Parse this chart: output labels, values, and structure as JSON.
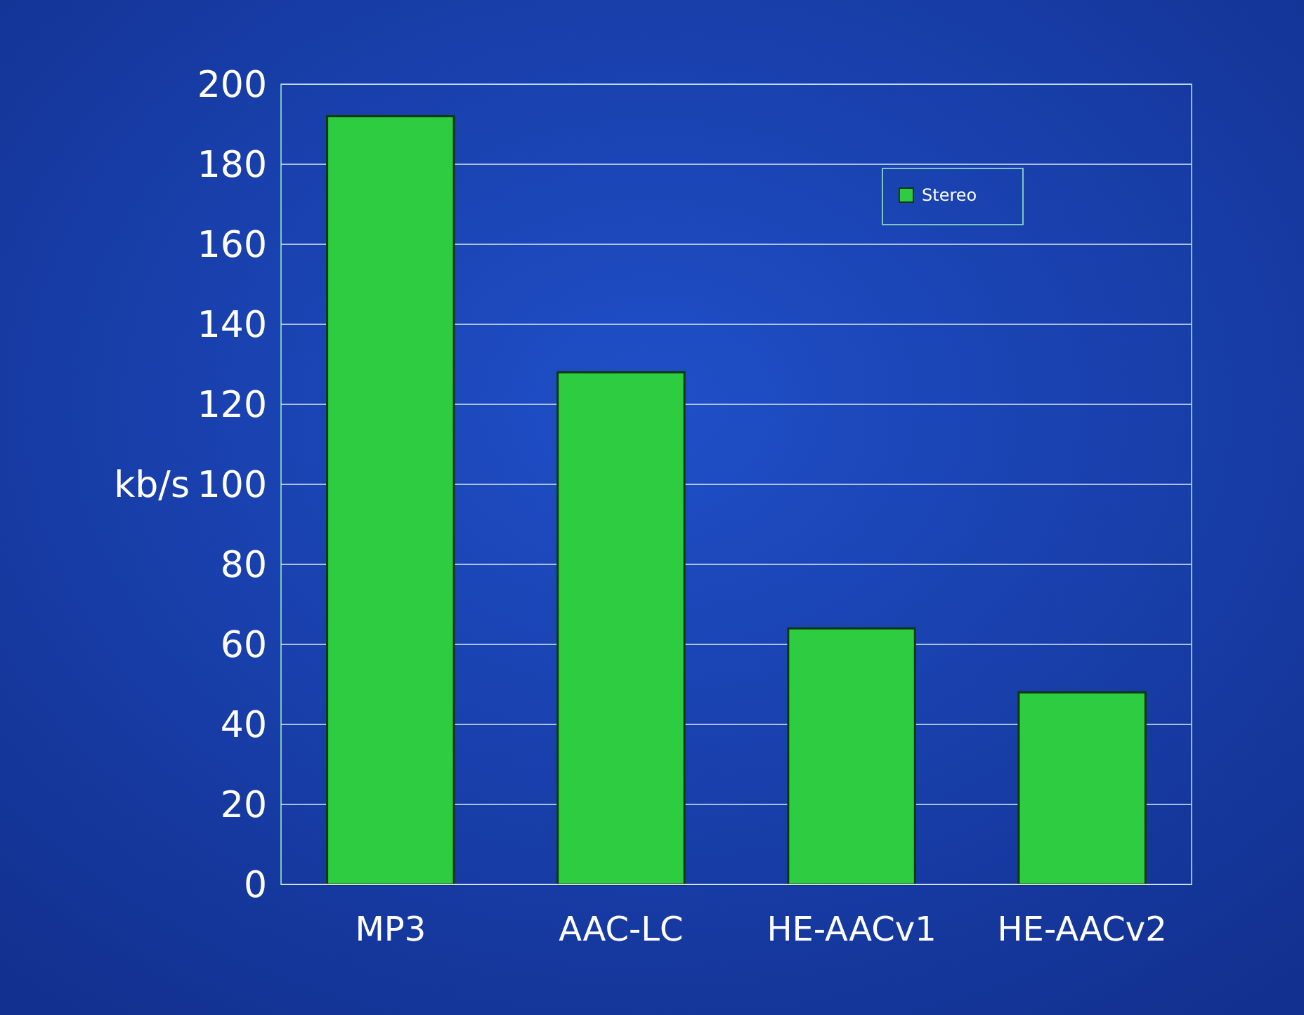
{
  "chart_data": {
    "type": "bar",
    "ylabel": "kb/s",
    "categories": [
      "MP3",
      "AAC-LC",
      "HE-AACv1",
      "HE-AACv2"
    ],
    "series": [
      {
        "name": "Stereo",
        "color": "#2ecc40",
        "values": [
          192,
          128,
          64,
          48
        ]
      }
    ],
    "ylim": [
      0,
      200
    ],
    "yticks": [
      0,
      20,
      40,
      60,
      80,
      100,
      120,
      140,
      160,
      180,
      200
    ],
    "grid": "y",
    "legend": "top right"
  }
}
